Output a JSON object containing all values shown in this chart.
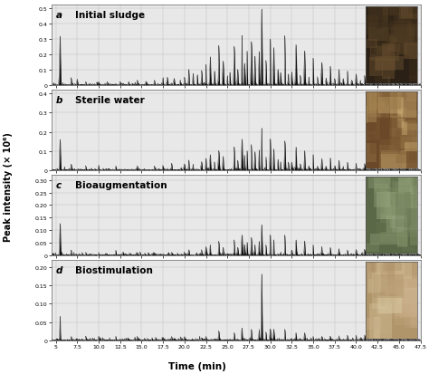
{
  "panels": [
    {
      "label": "a",
      "title": "Initial sludge",
      "ylim": [
        0,
        0.52
      ],
      "yticks": [
        0.0,
        0.1,
        0.2,
        0.3,
        0.4,
        0.5
      ],
      "ytick_labels": [
        "0",
        "0.1",
        "0.2",
        "0.3",
        "0.4",
        "0.5"
      ],
      "peaks": [
        [
          5.5,
          0.3
        ],
        [
          6.8,
          0.04
        ],
        [
          7.5,
          0.03
        ],
        [
          8.5,
          0.02
        ],
        [
          10.0,
          0.02
        ],
        [
          11.0,
          0.02
        ],
        [
          12.5,
          0.02
        ],
        [
          13.5,
          0.02
        ],
        [
          14.5,
          0.03
        ],
        [
          15.5,
          0.02
        ],
        [
          16.5,
          0.03
        ],
        [
          17.5,
          0.04
        ],
        [
          18.0,
          0.05
        ],
        [
          18.8,
          0.04
        ],
        [
          19.5,
          0.03
        ],
        [
          20.0,
          0.05
        ],
        [
          20.5,
          0.1
        ],
        [
          21.0,
          0.07
        ],
        [
          21.5,
          0.06
        ],
        [
          22.0,
          0.09
        ],
        [
          22.5,
          0.12
        ],
        [
          23.0,
          0.18
        ],
        [
          23.5,
          0.09
        ],
        [
          24.0,
          0.22
        ],
        [
          24.5,
          0.15
        ],
        [
          25.0,
          0.06
        ],
        [
          25.3,
          0.08
        ],
        [
          25.8,
          0.25
        ],
        [
          26.2,
          0.1
        ],
        [
          26.7,
          0.32
        ],
        [
          27.0,
          0.14
        ],
        [
          27.3,
          0.22
        ],
        [
          27.8,
          0.28
        ],
        [
          28.2,
          0.18
        ],
        [
          28.7,
          0.2
        ],
        [
          29.0,
          0.48
        ],
        [
          29.5,
          0.15
        ],
        [
          30.0,
          0.3
        ],
        [
          30.4,
          0.24
        ],
        [
          30.9,
          0.1
        ],
        [
          31.2,
          0.08
        ],
        [
          31.7,
          0.32
        ],
        [
          32.1,
          0.07
        ],
        [
          32.5,
          0.08
        ],
        [
          33.0,
          0.26
        ],
        [
          33.5,
          0.06
        ],
        [
          34.0,
          0.22
        ],
        [
          34.5,
          0.05
        ],
        [
          35.0,
          0.17
        ],
        [
          35.5,
          0.05
        ],
        [
          36.0,
          0.14
        ],
        [
          36.5,
          0.04
        ],
        [
          37.0,
          0.12
        ],
        [
          37.5,
          0.04
        ],
        [
          38.0,
          0.1
        ],
        [
          38.5,
          0.04
        ],
        [
          39.0,
          0.09
        ],
        [
          39.5,
          0.03
        ],
        [
          40.0,
          0.07
        ],
        [
          40.5,
          0.03
        ],
        [
          41.0,
          0.06
        ],
        [
          41.5,
          0.03
        ],
        [
          42.0,
          0.05
        ],
        [
          42.5,
          0.03
        ],
        [
          43.0,
          0.04
        ],
        [
          43.5,
          0.03
        ],
        [
          44.0,
          0.04
        ],
        [
          44.5,
          0.03
        ],
        [
          45.0,
          0.03
        ],
        [
          45.5,
          0.03
        ],
        [
          46.0,
          0.02
        ],
        [
          46.5,
          0.02
        ]
      ],
      "noise_level": 0.012
    },
    {
      "label": "b",
      "title": "Sterile water",
      "ylim": [
        0,
        0.42
      ],
      "yticks": [
        0.0,
        0.1,
        0.2,
        0.3,
        0.4
      ],
      "ytick_labels": [
        "0",
        "0.1",
        "0.2",
        "0.3",
        "0.4"
      ],
      "peaks": [
        [
          5.5,
          0.16
        ],
        [
          6.8,
          0.03
        ],
        [
          8.5,
          0.02
        ],
        [
          10.0,
          0.02
        ],
        [
          12.0,
          0.02
        ],
        [
          14.5,
          0.02
        ],
        [
          16.5,
          0.02
        ],
        [
          17.5,
          0.02
        ],
        [
          18.5,
          0.03
        ],
        [
          20.0,
          0.03
        ],
        [
          20.5,
          0.05
        ],
        [
          21.0,
          0.03
        ],
        [
          22.0,
          0.04
        ],
        [
          22.5,
          0.06
        ],
        [
          23.0,
          0.08
        ],
        [
          23.5,
          0.04
        ],
        [
          24.0,
          0.1
        ],
        [
          24.5,
          0.07
        ],
        [
          25.8,
          0.12
        ],
        [
          26.2,
          0.05
        ],
        [
          26.7,
          0.16
        ],
        [
          27.0,
          0.07
        ],
        [
          27.3,
          0.1
        ],
        [
          27.8,
          0.13
        ],
        [
          28.2,
          0.09
        ],
        [
          28.7,
          0.1
        ],
        [
          29.0,
          0.22
        ],
        [
          29.5,
          0.07
        ],
        [
          30.0,
          0.15
        ],
        [
          30.4,
          0.11
        ],
        [
          30.9,
          0.05
        ],
        [
          31.2,
          0.04
        ],
        [
          31.7,
          0.15
        ],
        [
          32.1,
          0.03
        ],
        [
          32.5,
          0.04
        ],
        [
          33.0,
          0.12
        ],
        [
          33.5,
          0.03
        ],
        [
          34.0,
          0.1
        ],
        [
          34.5,
          0.02
        ],
        [
          35.0,
          0.08
        ],
        [
          35.5,
          0.02
        ],
        [
          36.0,
          0.06
        ],
        [
          36.5,
          0.02
        ],
        [
          37.0,
          0.06
        ],
        [
          37.5,
          0.02
        ],
        [
          38.0,
          0.05
        ],
        [
          38.5,
          0.02
        ],
        [
          39.0,
          0.04
        ],
        [
          40.0,
          0.03
        ],
        [
          41.0,
          0.03
        ],
        [
          42.0,
          0.02
        ],
        [
          43.0,
          0.02
        ],
        [
          44.0,
          0.02
        ],
        [
          45.0,
          0.02
        ],
        [
          46.0,
          0.02
        ]
      ],
      "noise_level": 0.01
    },
    {
      "label": "c",
      "title": "Bioaugmentation",
      "ylim": [
        0,
        0.32
      ],
      "yticks": [
        0.0,
        0.05,
        0.1,
        0.15,
        0.2,
        0.25,
        0.3
      ],
      "ytick_labels": [
        "0",
        "0.05",
        "0.10",
        "0.15",
        "0.20",
        "0.25",
        "0.30"
      ],
      "peaks": [
        [
          5.5,
          0.12
        ],
        [
          6.8,
          0.02
        ],
        [
          8.5,
          0.01
        ],
        [
          10.0,
          0.01
        ],
        [
          12.0,
          0.01
        ],
        [
          14.5,
          0.01
        ],
        [
          16.5,
          0.01
        ],
        [
          18.5,
          0.01
        ],
        [
          20.0,
          0.01
        ],
        [
          20.5,
          0.02
        ],
        [
          22.0,
          0.02
        ],
        [
          22.5,
          0.03
        ],
        [
          23.0,
          0.04
        ],
        [
          24.0,
          0.05
        ],
        [
          24.5,
          0.03
        ],
        [
          25.8,
          0.06
        ],
        [
          26.2,
          0.03
        ],
        [
          26.7,
          0.08
        ],
        [
          27.0,
          0.04
        ],
        [
          27.3,
          0.05
        ],
        [
          27.8,
          0.07
        ],
        [
          28.2,
          0.04
        ],
        [
          28.7,
          0.05
        ],
        [
          29.0,
          0.12
        ],
        [
          29.5,
          0.04
        ],
        [
          30.0,
          0.08
        ],
        [
          30.4,
          0.06
        ],
        [
          31.7,
          0.08
        ],
        [
          32.5,
          0.02
        ],
        [
          33.0,
          0.06
        ],
        [
          34.0,
          0.05
        ],
        [
          35.0,
          0.04
        ],
        [
          36.0,
          0.03
        ],
        [
          37.0,
          0.03
        ],
        [
          38.0,
          0.02
        ],
        [
          39.0,
          0.02
        ],
        [
          40.0,
          0.02
        ],
        [
          41.0,
          0.02
        ],
        [
          42.0,
          0.01
        ],
        [
          43.0,
          0.01
        ],
        [
          44.0,
          0.01
        ],
        [
          45.0,
          0.01
        ],
        [
          46.0,
          0.01
        ]
      ],
      "noise_level": 0.008
    },
    {
      "label": "d",
      "title": "Biostimulation",
      "ylim": [
        0,
        0.22
      ],
      "yticks": [
        0.0,
        0.05,
        0.1,
        0.15,
        0.2
      ],
      "ytick_labels": [
        "0",
        "0.05",
        "0.10",
        "0.15",
        "0.20"
      ],
      "peaks": [
        [
          5.5,
          0.06
        ],
        [
          6.8,
          0.01
        ],
        [
          8.5,
          0.01
        ],
        [
          10.0,
          0.01
        ],
        [
          12.0,
          0.01
        ],
        [
          14.5,
          0.01
        ],
        [
          18.5,
          0.01
        ],
        [
          20.0,
          0.01
        ],
        [
          22.5,
          0.01
        ],
        [
          24.0,
          0.02
        ],
        [
          25.8,
          0.02
        ],
        [
          26.7,
          0.03
        ],
        [
          27.8,
          0.03
        ],
        [
          28.7,
          0.03
        ],
        [
          29.0,
          0.18
        ],
        [
          29.5,
          0.02
        ],
        [
          30.0,
          0.03
        ],
        [
          30.4,
          0.03
        ],
        [
          31.7,
          0.03
        ],
        [
          33.0,
          0.02
        ],
        [
          34.0,
          0.02
        ],
        [
          35.0,
          0.01
        ],
        [
          36.0,
          0.01
        ],
        [
          37.0,
          0.01
        ],
        [
          38.0,
          0.01
        ],
        [
          39.0,
          0.01
        ],
        [
          40.0,
          0.01
        ],
        [
          41.0,
          0.01
        ],
        [
          42.0,
          0.01
        ],
        [
          43.0,
          0.01
        ],
        [
          44.0,
          0.01
        ],
        [
          45.0,
          0.01
        ],
        [
          46.0,
          0.01
        ]
      ],
      "noise_level": 0.006
    }
  ],
  "xmin": 4.5,
  "xmax": 47.5,
  "xticks": [
    5,
    7.5,
    10,
    12.5,
    15,
    17.5,
    20,
    22.5,
    25,
    27.5,
    30,
    32.5,
    35,
    37.5,
    40,
    42.5,
    45,
    47.5
  ],
  "xtick_labels": [
    "5",
    "7.5",
    "10.0",
    "12.5",
    "15.0",
    "17.5",
    "20.0",
    "22.5",
    "25.0",
    "27.5",
    "30.0",
    "32.5",
    "35.0",
    "37.5",
    "40.0",
    "42.5",
    "45.0",
    "47.5"
  ],
  "xlabel": "Time (min)",
  "ylabel": "Peak intensity (× 10⁶)",
  "bg_color": "#e8e8e8",
  "line_color": "#111111",
  "grid_color": "#b8b8b8",
  "title_fontsize": 7.5,
  "label_fontsize": 7.5,
  "tick_fontsize": 4.5,
  "ylabel_fontsize": 7
}
